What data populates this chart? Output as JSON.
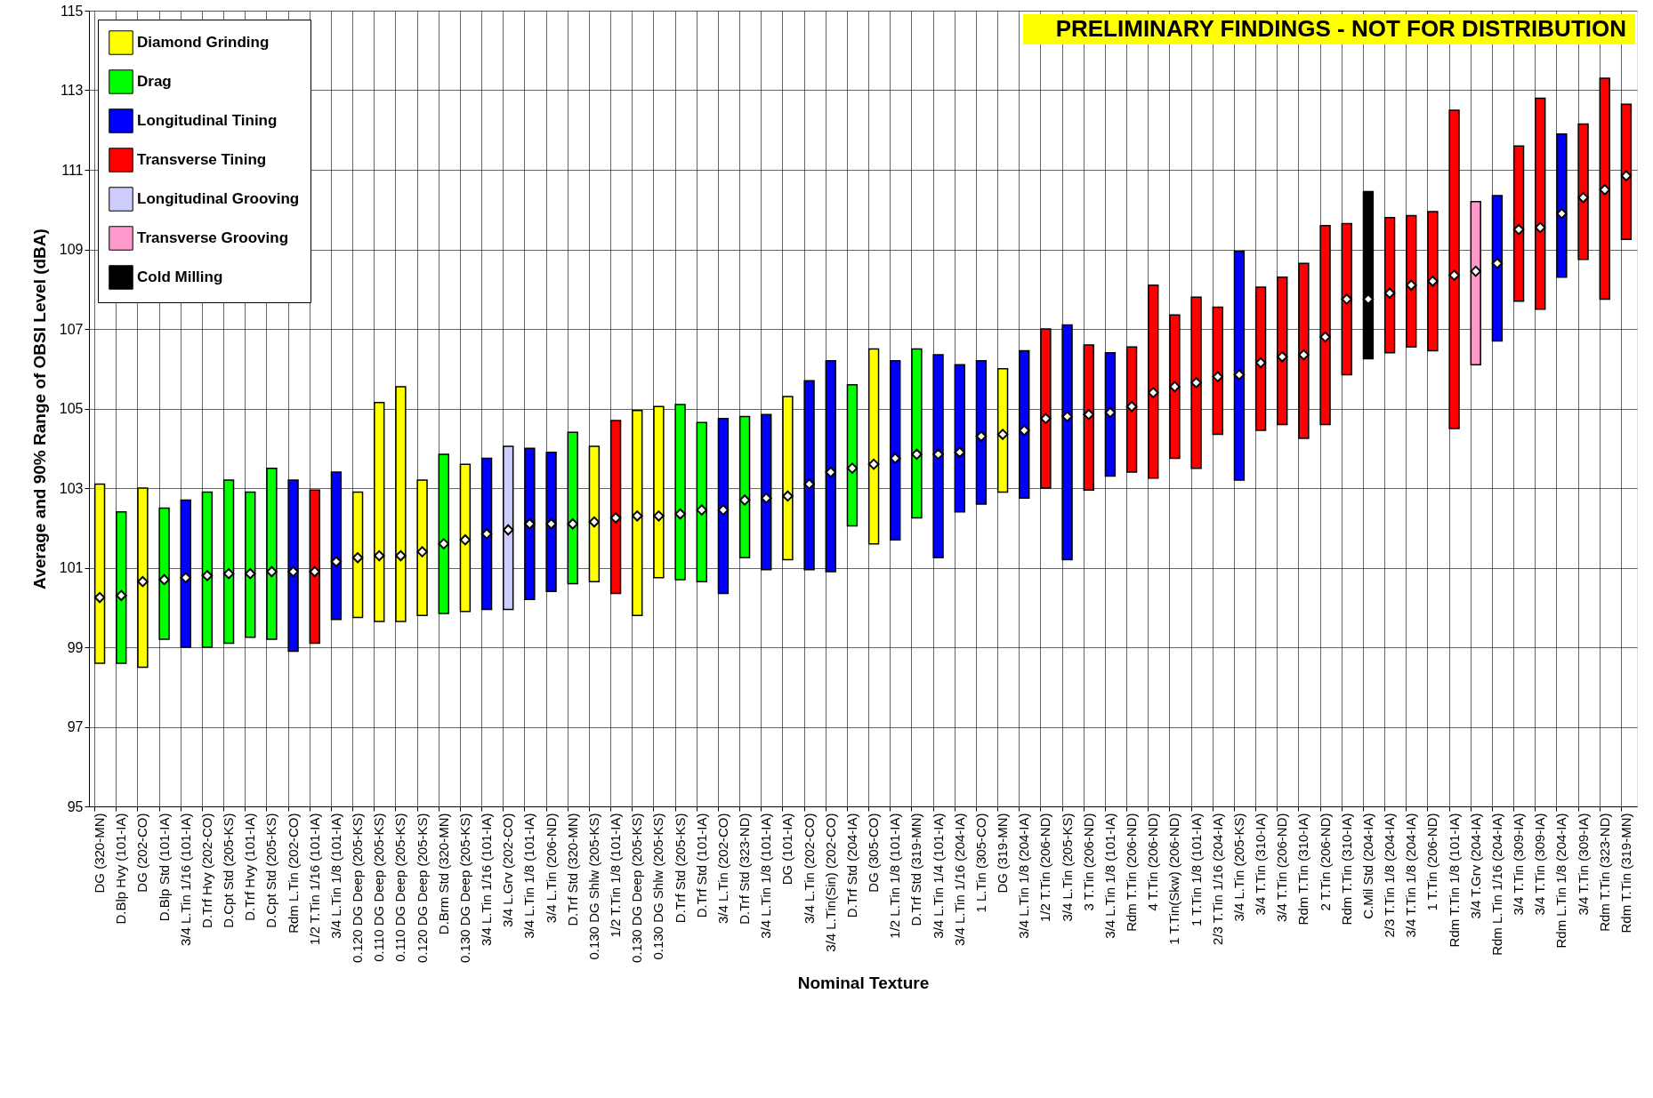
{
  "chart_data": {
    "type": "bar",
    "xlabel": "Nominal Texture",
    "ylabel": "Average and 90% Range of OBSI Level (dBA)",
    "annotations": [
      "PRELIMINARY FINDINGS - NOT FOR DISTRIBUTION"
    ],
    "categories": [
      "DG (320-MN)",
      "D.Blp Hvy (101-IA)",
      "DG (202-CO)",
      "D.Blp Std (101-IA)",
      "3/4 L.Tin 1/16 (101-IA)",
      "D.Trf Hvy (202-CO)",
      "D.Cpt Std (205-KS)",
      "D.Trf Hvy (101-IA)",
      "D.Cpt Std (205-KS)",
      "Rdm L.Tin (202-CO)",
      "1/2 T.Tin 1/16 (101-IA)",
      "3/4 L.Tin 1/8 (101-IA)",
      "0.120 DG Deep (205-KS)",
      "0.110 DG Deep (205-KS)",
      "0.110 DG Deep (205-KS)",
      "0.120 DG Deep (205-KS)",
      "D.Brm Std (320-MN)",
      "0.130 DG Deep (205-KS)",
      "3/4 L.Tin 1/16 (101-IA)",
      "3/4 L.Grv (202-CO)",
      "3/4 L.Tin 1/8 (101-IA)",
      "3/4 L.Tin (206-ND)",
      "D.Trf Std (320-MN)",
      "0.130 DG Shlw (205-KS)",
      "1/2 T.Tin 1/8 (101-IA)",
      "0.130 DG Deep (205-KS)",
      "0.130 DG Shlw (205-KS)",
      "D.Trf Std (205-KS)",
      "D.Trf Std (101-IA)",
      "3/4 L.Tin (202-CO)",
      "D.Trf Std (323-ND)",
      "3/4 L.Tin 1/8 (101-IA)",
      "DG (101-IA)",
      "3/4 L.Tin (202-CO)",
      "3/4 L.Tin(Sin) (202-CO)",
      "D.Trf Std (204-IA)",
      "DG (305-CO)",
      "1/2 L.Tin 1/8 (101-IA)",
      "D.Trf Std (319-MN)",
      "3/4 L.Tin 1/4 (101-IA)",
      "3/4 L.Tin 1/16 (204-IA)",
      "1 L.Tin (305-CO)",
      "DG (319-MN)",
      "3/4 L.Tin 1/8 (204-IA)",
      "1/2 T.Tin (206-ND)",
      "3/4 L.Tin (205-KS)",
      "3 T.Tin (206-ND)",
      "3/4 L.Tin 1/8 (101-IA)",
      "Rdm T.Tin (206-ND)",
      "4 T.Tin (206-ND)",
      "1 T.Tin(Skw) (206-ND)",
      "1 T.Tin 1/8 (101-IA)",
      "2/3 T.Tin 1/16 (204-IA)",
      "3/4 L.Tin (205-KS)",
      "3/4 T.Tin (310-IA)",
      "3/4 T.Tin (206-ND)",
      "Rdm T.Tin (310-IA)",
      "2 T.Tin (206-ND)",
      "Rdm T.Tin (310-IA)",
      "C.Mil Std (204-IA)",
      "2/3 T.Tin 1/8 (204-IA)",
      "3/4 T.Tin 1/8 (204-IA)",
      "1 T.Tin (206-ND)",
      "Rdm T.Tin 1/8 (101-IA)",
      "3/4 T.Grv (204-IA)",
      "Rdm L.Tin 1/16 (204-IA)",
      "3/4 T.Tin (309-IA)",
      "3/4 T.Tin (309-IA)",
      "Rdm L.Tin 1/8 (204-IA)",
      "3/4 T.Tin (309-IA)",
      "Rdm T.Tin (323-ND)",
      "Rdm T.Tin (319-MN)"
    ],
    "series": [
      {
        "name": "Diamond Grinding",
        "color": "#ffff00",
        "type": "bar",
        "values": [
          4.5,
          null,
          4.5,
          null,
          null,
          null,
          null,
          null,
          null,
          null,
          null,
          null,
          3.15,
          5.5,
          5.9,
          3.4,
          null,
          3.7,
          null,
          null,
          null,
          null,
          null,
          3.4,
          null,
          5.15,
          4.3,
          null,
          null,
          null,
          null,
          null,
          4.1,
          null,
          null,
          null,
          4.9,
          null,
          null,
          null,
          null,
          null,
          3.1,
          null,
          null,
          null,
          null,
          null,
          null,
          null,
          null,
          null,
          null,
          null,
          null,
          null,
          null,
          null,
          null,
          null,
          null,
          null,
          null,
          null,
          null,
          null,
          null,
          null,
          null,
          null,
          null,
          null
        ],
        "base": [
          98.6,
          null,
          98.5,
          null,
          null,
          null,
          null,
          null,
          null,
          null,
          null,
          null,
          99.75,
          99.65,
          99.65,
          99.8,
          null,
          99.9,
          null,
          null,
          null,
          null,
          null,
          100.65,
          null,
          99.8,
          100.75,
          null,
          null,
          null,
          null,
          null,
          101.2,
          null,
          null,
          null,
          101.6,
          null,
          null,
          null,
          null,
          null,
          102.9,
          null,
          null,
          null,
          null,
          null,
          null,
          null,
          null,
          null,
          null,
          null,
          null,
          null,
          null,
          null,
          null,
          null,
          null,
          null,
          null,
          null,
          null,
          null,
          null,
          null,
          null,
          null,
          null,
          null
        ]
      },
      {
        "name": "Drag",
        "color": "#00ff00",
        "type": "bar",
        "values": [
          null,
          3.8,
          null,
          3.3,
          null,
          3.9,
          4.1,
          3.65,
          4.3,
          null,
          null,
          null,
          null,
          null,
          null,
          null,
          4.0,
          null,
          null,
          null,
          null,
          null,
          3.8,
          null,
          null,
          null,
          null,
          4.4,
          4.0,
          null,
          3.55,
          null,
          null,
          null,
          null,
          3.55,
          null,
          null,
          4.25,
          null,
          null,
          null,
          null,
          null,
          null,
          null,
          null,
          null,
          null,
          null,
          null,
          null,
          null,
          null,
          null,
          null,
          null,
          null,
          null,
          null,
          null,
          null,
          null,
          null,
          null,
          null,
          null,
          null,
          null,
          null,
          null,
          null
        ],
        "base": [
          null,
          98.6,
          null,
          99.2,
          null,
          99.0,
          99.1,
          99.25,
          99.2,
          null,
          null,
          null,
          null,
          null,
          null,
          null,
          99.85,
          null,
          null,
          null,
          null,
          null,
          100.6,
          null,
          null,
          null,
          null,
          100.7,
          100.65,
          null,
          101.25,
          null,
          null,
          null,
          null,
          102.05,
          null,
          null,
          102.25,
          null,
          null,
          null,
          null,
          null,
          null,
          null,
          null,
          null,
          null,
          null,
          null,
          null,
          null,
          null,
          null,
          null,
          null,
          null,
          null,
          null,
          null,
          null,
          null,
          null,
          null,
          null,
          null,
          null,
          null,
          null,
          null,
          null
        ]
      },
      {
        "name": "Longitudinal Tining",
        "color": "#0000ff",
        "type": "bar",
        "values": [
          null,
          null,
          null,
          null,
          3.7,
          null,
          null,
          null,
          null,
          4.3,
          null,
          3.7,
          null,
          null,
          null,
          null,
          null,
          null,
          3.8,
          null,
          3.8,
          3.5,
          null,
          null,
          null,
          null,
          null,
          null,
          null,
          4.4,
          null,
          3.9,
          null,
          4.75,
          5.3,
          null,
          null,
          4.5,
          null,
          5.1,
          3.7,
          3.6,
          null,
          3.7,
          null,
          5.9,
          null,
          3.1,
          null,
          null,
          null,
          null,
          null,
          5.75,
          null,
          null,
          null,
          null,
          null,
          null,
          null,
          null,
          null,
          null,
          null,
          3.65,
          null,
          null,
          3.6,
          null,
          null,
          null
        ],
        "base": [
          null,
          null,
          null,
          null,
          99.0,
          null,
          null,
          null,
          null,
          98.9,
          null,
          99.7,
          null,
          null,
          null,
          null,
          null,
          null,
          99.95,
          null,
          100.2,
          100.4,
          null,
          null,
          null,
          null,
          null,
          null,
          null,
          100.35,
          null,
          100.95,
          null,
          100.95,
          100.9,
          null,
          null,
          101.7,
          null,
          101.25,
          102.4,
          102.6,
          null,
          102.75,
          null,
          101.2,
          null,
          103.3,
          null,
          null,
          null,
          null,
          null,
          103.2,
          null,
          null,
          null,
          null,
          null,
          null,
          null,
          null,
          null,
          null,
          null,
          106.7,
          null,
          null,
          108.3,
          null,
          null,
          null
        ]
      },
      {
        "name": "Transverse Tining",
        "color": "#ff0000",
        "type": "bar",
        "values": [
          null,
          null,
          null,
          null,
          null,
          null,
          null,
          null,
          null,
          null,
          3.85,
          null,
          null,
          null,
          null,
          null,
          null,
          null,
          null,
          null,
          null,
          null,
          null,
          null,
          4.35,
          null,
          null,
          null,
          null,
          null,
          null,
          null,
          null,
          null,
          null,
          null,
          null,
          null,
          null,
          null,
          null,
          null,
          null,
          null,
          4.0,
          null,
          3.65,
          null,
          3.15,
          4.85,
          3.6,
          4.3,
          3.2,
          null,
          3.6,
          3.7,
          4.4,
          5.0,
          3.8,
          null,
          3.4,
          3.3,
          3.5,
          8.0,
          null,
          null,
          3.9,
          5.3,
          null,
          3.4,
          5.55,
          3.4
        ],
        "base": [
          null,
          null,
          null,
          null,
          null,
          null,
          null,
          null,
          null,
          null,
          99.1,
          null,
          null,
          null,
          null,
          null,
          null,
          null,
          null,
          null,
          null,
          null,
          null,
          null,
          100.35,
          null,
          null,
          null,
          null,
          null,
          null,
          null,
          null,
          null,
          null,
          null,
          null,
          null,
          null,
          null,
          null,
          null,
          null,
          null,
          103.0,
          null,
          102.95,
          null,
          103.4,
          103.25,
          103.75,
          103.5,
          104.35,
          null,
          104.45,
          104.6,
          104.25,
          104.6,
          105.85,
          null,
          106.4,
          106.55,
          106.45,
          104.5,
          null,
          null,
          107.7,
          107.5,
          null,
          108.75,
          107.75,
          109.25
        ]
      },
      {
        "name": "Longitudinal Grooving",
        "color": "#ccccff",
        "type": "bar",
        "values": [
          null,
          null,
          null,
          null,
          null,
          null,
          null,
          null,
          null,
          null,
          null,
          null,
          null,
          null,
          null,
          null,
          null,
          null,
          null,
          4.1,
          null,
          null,
          null,
          null,
          null,
          null,
          null,
          null,
          null,
          null,
          null,
          null,
          null,
          null,
          null,
          null,
          null,
          null,
          null,
          null,
          null,
          null,
          null,
          null,
          null,
          null,
          null,
          null,
          null,
          null,
          null,
          null,
          null,
          null,
          null,
          null,
          null,
          null,
          null,
          null,
          null,
          null,
          null,
          null,
          null,
          null,
          null,
          null,
          null,
          null,
          null,
          null
        ],
        "base": [
          null,
          null,
          null,
          null,
          null,
          null,
          null,
          null,
          null,
          null,
          null,
          null,
          null,
          null,
          null,
          null,
          null,
          null,
          null,
          99.95,
          null,
          null,
          null,
          null,
          null,
          null,
          null,
          null,
          null,
          null,
          null,
          null,
          null,
          null,
          null,
          null,
          null,
          null,
          null,
          null,
          null,
          null,
          null,
          null,
          null,
          null,
          null,
          null,
          null,
          null,
          null,
          null,
          null,
          null,
          null,
          null,
          null,
          null,
          null,
          null,
          null,
          null,
          null,
          null,
          null,
          null,
          null,
          null,
          null,
          null,
          null,
          null
        ]
      },
      {
        "name": "Transverse Grooving",
        "color": "#ff99cc",
        "type": "bar",
        "values": [
          null,
          null,
          null,
          null,
          null,
          null,
          null,
          null,
          null,
          null,
          null,
          null,
          null,
          null,
          null,
          null,
          null,
          null,
          null,
          null,
          null,
          null,
          null,
          null,
          null,
          null,
          null,
          null,
          null,
          null,
          null,
          null,
          null,
          null,
          null,
          null,
          null,
          null,
          null,
          null,
          null,
          null,
          null,
          null,
          null,
          null,
          null,
          null,
          null,
          null,
          null,
          null,
          null,
          null,
          null,
          null,
          null,
          null,
          null,
          null,
          null,
          null,
          null,
          null,
          4.1,
          null,
          null,
          null,
          null,
          null,
          null,
          null
        ],
        "base": [
          null,
          null,
          null,
          null,
          null,
          null,
          null,
          null,
          null,
          null,
          null,
          null,
          null,
          null,
          null,
          null,
          null,
          null,
          null,
          null,
          null,
          null,
          null,
          null,
          null,
          null,
          null,
          null,
          null,
          null,
          null,
          null,
          null,
          null,
          null,
          null,
          null,
          null,
          null,
          null,
          null,
          null,
          null,
          null,
          null,
          null,
          null,
          null,
          null,
          null,
          null,
          null,
          null,
          null,
          null,
          null,
          null,
          null,
          null,
          null,
          null,
          null,
          null,
          null,
          106.1,
          null,
          null,
          null,
          null,
          null,
          null,
          null
        ]
      },
      {
        "name": "Cold Milling",
        "color": "#000000",
        "type": "bar",
        "values": [
          null,
          null,
          null,
          null,
          null,
          null,
          null,
          null,
          null,
          null,
          null,
          null,
          null,
          null,
          null,
          null,
          null,
          null,
          null,
          null,
          null,
          null,
          null,
          null,
          null,
          null,
          null,
          null,
          null,
          null,
          null,
          null,
          null,
          null,
          null,
          null,
          null,
          null,
          null,
          null,
          null,
          null,
          null,
          null,
          null,
          null,
          null,
          null,
          null,
          null,
          null,
          null,
          null,
          null,
          null,
          null,
          null,
          null,
          null,
          4.2,
          null,
          null,
          null,
          null,
          null,
          null,
          null,
          null,
          null,
          null,
          null,
          null
        ],
        "base": [
          null,
          null,
          null,
          null,
          null,
          null,
          null,
          null,
          null,
          null,
          null,
          null,
          null,
          null,
          null,
          null,
          null,
          null,
          null,
          null,
          null,
          null,
          null,
          null,
          null,
          null,
          null,
          null,
          null,
          null,
          null,
          null,
          null,
          null,
          null,
          null,
          null,
          null,
          null,
          null,
          null,
          null,
          null,
          null,
          null,
          null,
          null,
          null,
          null,
          null,
          null,
          null,
          null,
          null,
          null,
          null,
          null,
          null,
          null,
          106.25,
          null,
          null,
          null,
          null,
          null,
          null,
          null,
          null,
          null,
          null,
          null,
          null
        ]
      },
      {
        "type": "scatter",
        "marker": "diamond",
        "color": "#ffffff",
        "values": [
          100.25,
          100.3,
          100.65,
          100.7,
          100.75,
          100.8,
          100.85,
          100.85,
          100.9,
          100.9,
          100.9,
          101.15,
          101.25,
          101.3,
          101.3,
          101.4,
          101.6,
          101.7,
          101.85,
          101.95,
          102.1,
          102.1,
          102.1,
          102.15,
          102.25,
          102.3,
          102.3,
          102.35,
          102.45,
          102.45,
          102.7,
          102.75,
          102.8,
          103.1,
          103.4,
          103.5,
          103.6,
          103.75,
          103.85,
          103.85,
          103.9,
          104.3,
          104.35,
          104.45,
          104.75,
          104.8,
          104.85,
          104.9,
          105.05,
          105.4,
          105.55,
          105.65,
          105.8,
          105.85,
          106.15,
          106.3,
          106.35,
          106.8,
          107.75,
          107.75,
          107.9,
          108.1,
          108.2,
          108.35,
          108.45,
          108.65,
          109.5,
          109.55,
          109.9,
          110.3,
          110.5,
          110.85
        ]
      }
    ],
    "ylim": [
      95,
      115
    ],
    "yticks": [
      95,
      97,
      99,
      101,
      103,
      105,
      107,
      109,
      111,
      113,
      115
    ],
    "grid": true,
    "legend": "top left"
  }
}
